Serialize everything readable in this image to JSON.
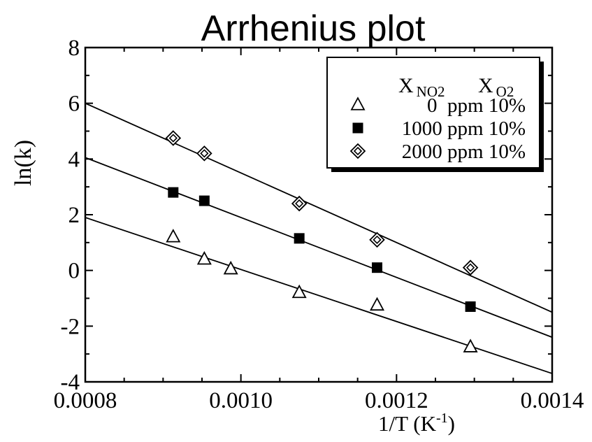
{
  "chart_data": {
    "type": "scatter",
    "title": "Arrhenius plot",
    "ylabel": "ln(k)",
    "xlabel_main": "1/T (K",
    "xlabel_sup": "-1",
    "xlabel_close": ")",
    "xlim": [
      0.0008,
      0.0014
    ],
    "ylim": [
      -4,
      8
    ],
    "x_ticks": [
      0.0008,
      0.001,
      0.0012,
      0.0014
    ],
    "x_tick_labels": [
      "0.0008",
      "0.0010",
      "0.0012",
      "0.0014"
    ],
    "y_ticks": [
      -4,
      -2,
      0,
      2,
      4,
      6,
      8
    ],
    "y_tick_labels": [
      "-4",
      "-2",
      "0",
      "2",
      "4",
      "6",
      "8"
    ],
    "x_minor_step": 5e-05,
    "y_minor_step": 1,
    "grid": false,
    "legend": {
      "placement": "top-right",
      "header_x_main": "X",
      "header_x_sub": "NO2",
      "header_o_main": "X",
      "header_o_sub": "O2",
      "entries": [
        "0  ppm 10%",
        "1000 ppm 10%",
        "2000 ppm 10%"
      ]
    },
    "series": [
      {
        "marker": "triangle-open",
        "x": [
          0.000913,
          0.000953,
          0.000987,
          0.001075,
          0.001175,
          0.001295
        ],
        "y": [
          1.2,
          0.4,
          0.05,
          -0.8,
          -1.25,
          -2.75
        ],
        "fit": [
          [
            0.0008,
            1.9
          ],
          [
            0.0014,
            -3.7
          ]
        ]
      },
      {
        "marker": "square-filled",
        "x": [
          0.000913,
          0.000953,
          0.001075,
          0.001175,
          0.001295
        ],
        "y": [
          2.8,
          2.5,
          1.15,
          0.1,
          -1.3
        ],
        "fit": [
          [
            0.0008,
            4.05
          ],
          [
            0.0014,
            -2.4
          ]
        ]
      },
      {
        "marker": "diamond-dot",
        "x": [
          0.000913,
          0.000953,
          0.001075,
          0.001175,
          0.001295
        ],
        "y": [
          4.75,
          4.2,
          2.4,
          1.1,
          0.1
        ],
        "fit": [
          [
            0.0008,
            6.0
          ],
          [
            0.0014,
            -1.5
          ]
        ]
      }
    ]
  }
}
